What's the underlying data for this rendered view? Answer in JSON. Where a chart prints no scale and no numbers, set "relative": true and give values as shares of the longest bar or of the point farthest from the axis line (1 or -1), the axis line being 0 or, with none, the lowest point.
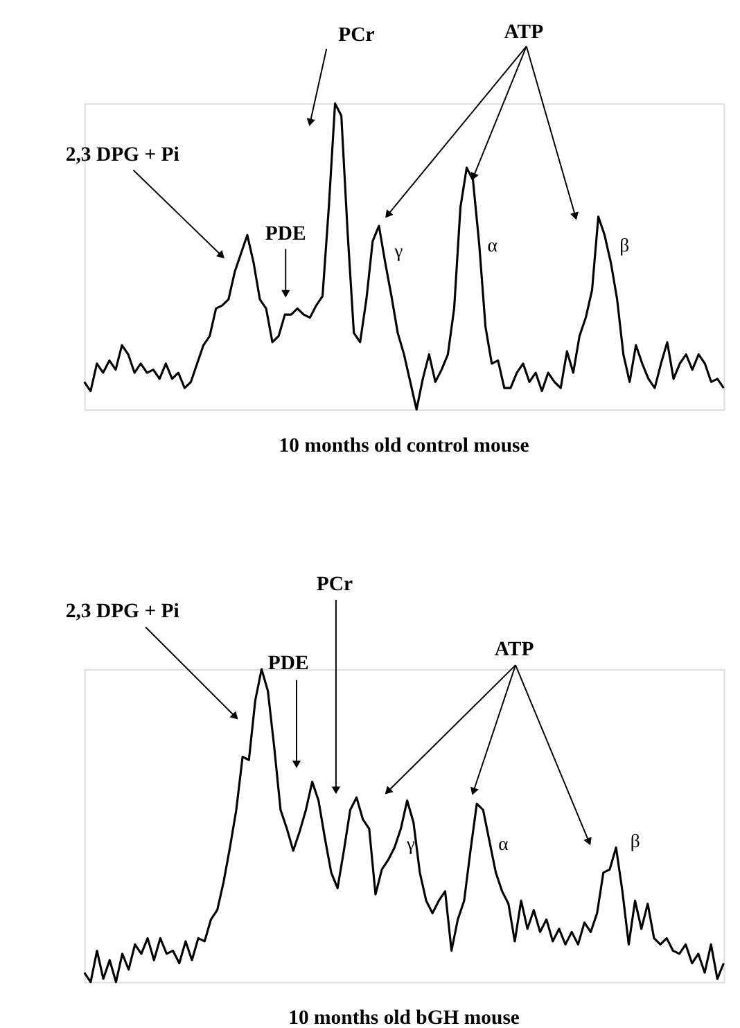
{
  "chart_data": [
    {
      "type": "line",
      "relative": true,
      "title": "10 months old control mouse",
      "categories": [
        null,
        null,
        null,
        null,
        null,
        null,
        null,
        null,
        null,
        null,
        null,
        null,
        null,
        null,
        null,
        null,
        null,
        null,
        null,
        null,
        null,
        null,
        null,
        null,
        null,
        null,
        null,
        null,
        null,
        null,
        null,
        null,
        null,
        null,
        null,
        null,
        null,
        null,
        null,
        null,
        null,
        null,
        null,
        null,
        null,
        null,
        null,
        null,
        null,
        null,
        null,
        null,
        null,
        null,
        null,
        null,
        null,
        null,
        null,
        null,
        null,
        null,
        null,
        null,
        null,
        null,
        null,
        null,
        null,
        null,
        null,
        null,
        null,
        null,
        null,
        null,
        null,
        null,
        null,
        null,
        null,
        null,
        null,
        null,
        null,
        null,
        null,
        null,
        null,
        null,
        null,
        null,
        null,
        null,
        null,
        null,
        null,
        null,
        null,
        null,
        null,
        null,
        null
      ],
      "series": [
        {
          "color": "#000000",
          "values": [
            0.09,
            0.06,
            0.15,
            0.12,
            0.16,
            0.13,
            0.21,
            0.18,
            0.12,
            0.15,
            0.12,
            0.13,
            0.1,
            0.15,
            0.1,
            0.12,
            0.07,
            0.09,
            0.15,
            0.21,
            0.24,
            0.33,
            0.34,
            0.36,
            0.45,
            0.51,
            0.57,
            0.48,
            0.36,
            0.33,
            0.22,
            0.24,
            0.31,
            0.31,
            0.33,
            0.31,
            0.3,
            0.34,
            0.37,
            0.66,
            1,
            0.96,
            0.58,
            0.25,
            0.22,
            0.36,
            0.55,
            0.6,
            0.48,
            0.37,
            0.25,
            0.18,
            0.09,
            0,
            0.1,
            0.18,
            0.09,
            0.13,
            0.18,
            0.33,
            0.66,
            0.79,
            0.75,
            0.54,
            0.27,
            0.15,
            0.16,
            0.07,
            0.07,
            0.12,
            0.15,
            0.09,
            0.12,
            0.06,
            0.12,
            0.09,
            0.07,
            0.19,
            0.12,
            0.24,
            0.3,
            0.39,
            0.63,
            0.57,
            0.48,
            0.36,
            0.18,
            0.09,
            0.21,
            0.15,
            0.1,
            0.07,
            0.15,
            0.22,
            0.1,
            0.15,
            0.18,
            0.13,
            0.18,
            0.15,
            0.09,
            0.1,
            0.07
          ]
        }
      ],
      "annotations": [
        "2,3 DPG + Pi",
        "PDE",
        "PCr",
        "ATP",
        "γ",
        "α",
        "β"
      ]
    },
    {
      "type": "line",
      "relative": true,
      "title": "10 months old bGH mouse",
      "categories": [
        null,
        null,
        null,
        null,
        null,
        null,
        null,
        null,
        null,
        null,
        null,
        null,
        null,
        null,
        null,
        null,
        null,
        null,
        null,
        null,
        null,
        null,
        null,
        null,
        null,
        null,
        null,
        null,
        null,
        null,
        null,
        null,
        null,
        null,
        null,
        null,
        null,
        null,
        null,
        null,
        null,
        null,
        null,
        null,
        null,
        null,
        null,
        null,
        null,
        null,
        null,
        null,
        null,
        null,
        null,
        null,
        null,
        null,
        null,
        null,
        null,
        null,
        null,
        null,
        null,
        null,
        null,
        null,
        null,
        null,
        null,
        null,
        null,
        null,
        null,
        null,
        null,
        null,
        null,
        null,
        null,
        null,
        null,
        null,
        null,
        null,
        null,
        null,
        null,
        null,
        null,
        null,
        null,
        null,
        null,
        null,
        null,
        null,
        null,
        null,
        null,
        null
      ],
      "series": [
        {
          "color": "#000000",
          "values": [
            0.03,
            0,
            0.1,
            0.01,
            0.07,
            0,
            0.09,
            0.04,
            0.12,
            0.09,
            0.14,
            0.07,
            0.14,
            0.09,
            0.1,
            0.06,
            0.13,
            0.07,
            0.14,
            0.13,
            0.2,
            0.23,
            0.32,
            0.43,
            0.55,
            0.72,
            0.71,
            0.9,
            1,
            0.93,
            0.75,
            0.55,
            0.49,
            0.42,
            0.48,
            0.55,
            0.64,
            0.58,
            0.46,
            0.35,
            0.3,
            0.42,
            0.55,
            0.59,
            0.52,
            0.49,
            0.28,
            0.36,
            0.39,
            0.43,
            0.49,
            0.58,
            0.51,
            0.35,
            0.26,
            0.22,
            0.26,
            0.29,
            0.1,
            0.2,
            0.26,
            0.42,
            0.57,
            0.55,
            0.45,
            0.35,
            0.29,
            0.25,
            0.13,
            0.26,
            0.17,
            0.23,
            0.16,
            0.2,
            0.13,
            0.17,
            0.12,
            0.16,
            0.12,
            0.19,
            0.16,
            0.22,
            0.35,
            0.36,
            0.43,
            0.29,
            0.12,
            0.26,
            0.17,
            0.25,
            0.14,
            0.12,
            0.14,
            0.1,
            0.09,
            0.12,
            0.06,
            0.09,
            0.03,
            0.12,
            0.01,
            0.06
          ]
        }
      ],
      "annotations": [
        "2,3 DPG + Pi",
        "PDE",
        "PCr",
        "ATP",
        "γ",
        "α",
        "β"
      ]
    }
  ]
}
